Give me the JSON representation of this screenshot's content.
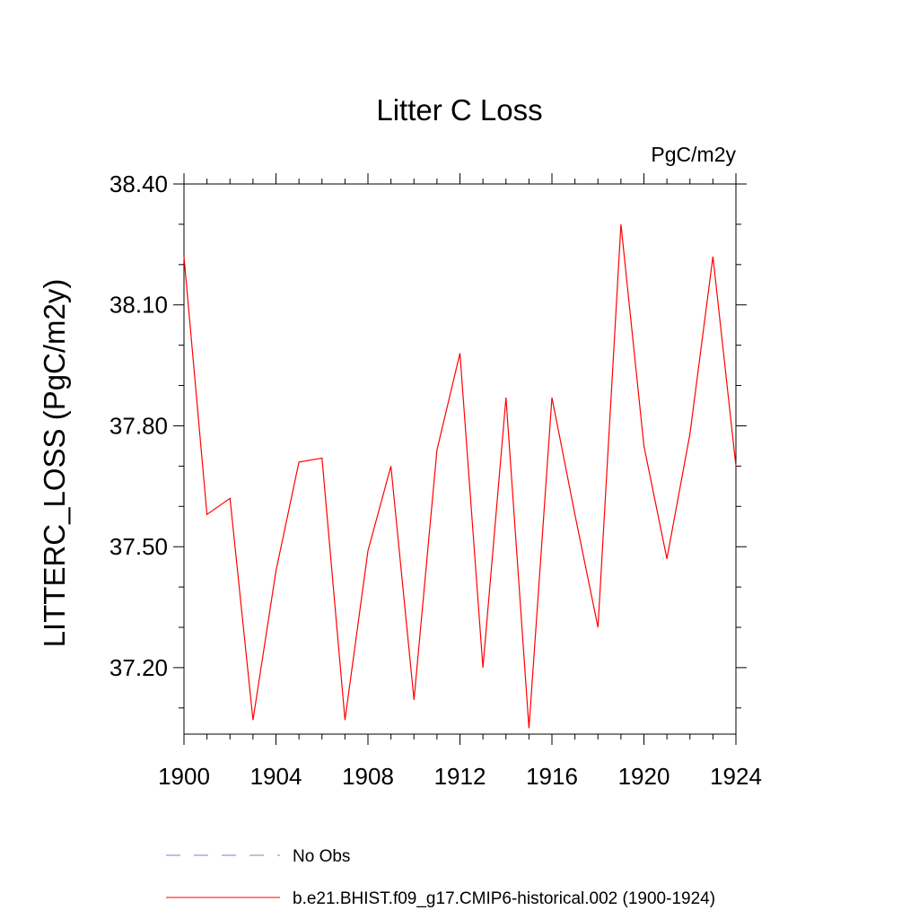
{
  "chart_data": {
    "type": "line",
    "title": "Litter C Loss",
    "units_label": "PgC/m2y",
    "ylabel": "LITTERC_LOSS  (PgC/m2y)",
    "xlabel": "",
    "xlim": [
      1900,
      1924
    ],
    "ylim": [
      37.035,
      38.4
    ],
    "x_ticks": [
      1900,
      1904,
      1908,
      1912,
      1916,
      1920,
      1924
    ],
    "x_tick_labels": [
      "1900",
      "1904",
      "1908",
      "1912",
      "1916",
      "1920",
      "1924"
    ],
    "y_ticks": [
      37.2,
      37.5,
      37.8,
      38.1,
      38.4
    ],
    "y_tick_labels": [
      "37.20",
      "37.50",
      "37.80",
      "38.10",
      "38.40"
    ],
    "grid": false,
    "series": [
      {
        "name": "b.e21.BHIST.f09_g17.CMIP6-historical.002 (1900-1924)",
        "color": "#ff0000",
        "dash": "solid",
        "x": [
          1900,
          1901,
          1902,
          1903,
          1904,
          1905,
          1906,
          1907,
          1908,
          1909,
          1910,
          1911,
          1912,
          1913,
          1914,
          1915,
          1916,
          1917,
          1918,
          1919,
          1920,
          1921,
          1922,
          1923,
          1924
        ],
        "values": [
          38.22,
          37.58,
          37.62,
          37.07,
          37.44,
          37.71,
          37.72,
          37.07,
          37.49,
          37.7,
          37.12,
          37.74,
          37.98,
          37.2,
          37.87,
          37.05,
          37.87,
          37.58,
          37.3,
          38.3,
          37.75,
          37.47,
          37.78,
          38.22,
          37.7
        ]
      }
    ],
    "legend": [
      {
        "label": "No Obs",
        "color": "#8080c0",
        "dash": "dashed"
      },
      {
        "label": "b.e21.BHIST.f09_g17.CMIP6-historical.002 (1900-1924)",
        "color": "#ff0000",
        "dash": "solid"
      }
    ]
  }
}
